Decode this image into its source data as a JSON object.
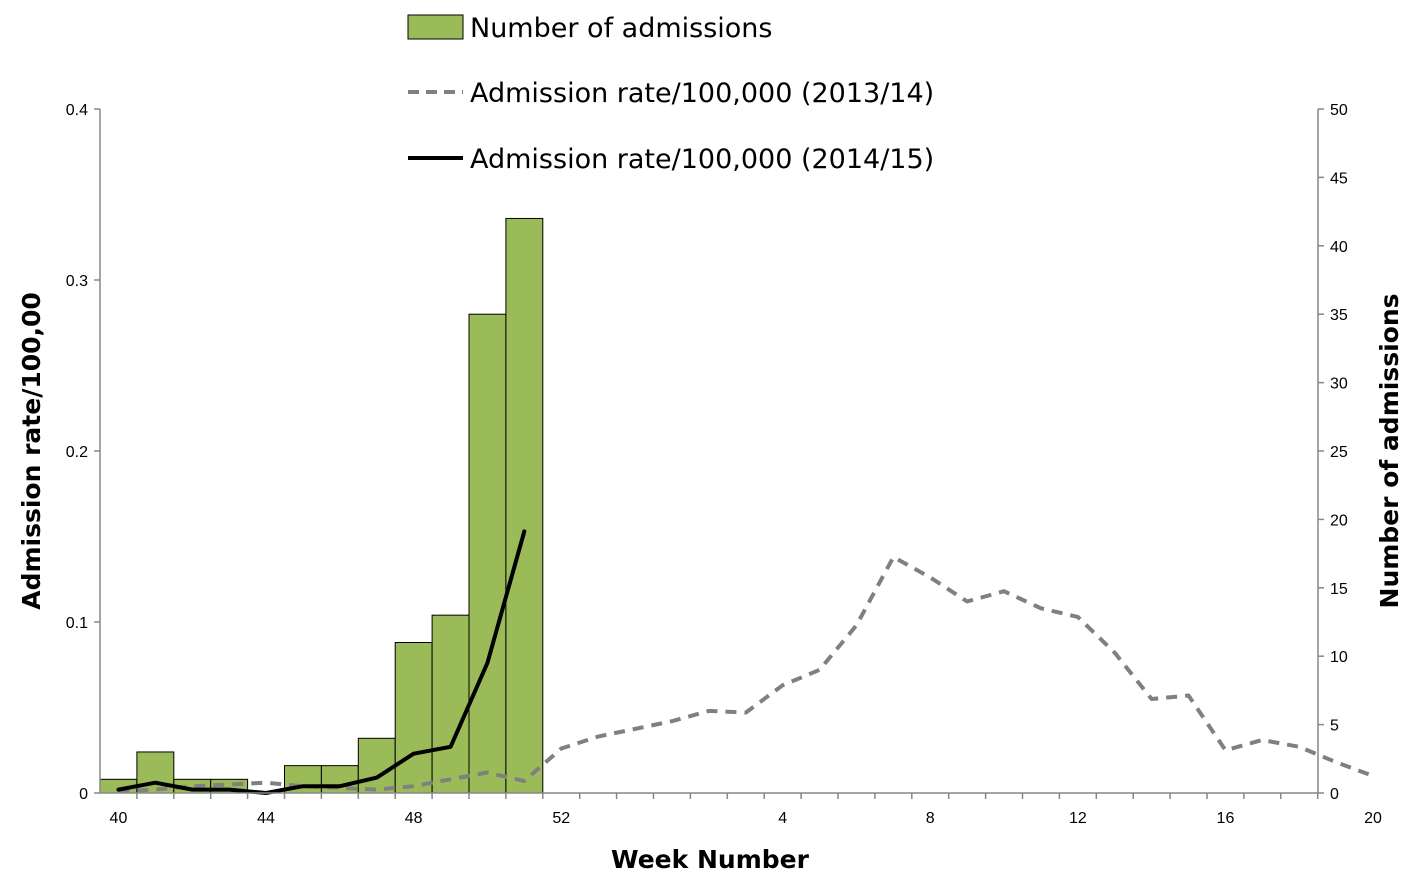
{
  "chart_data": {
    "type": "bar",
    "xlabel": "Week Number",
    "ylabel_left": "Admission rate/100,00",
    "ylabel_right": "Number of admissions",
    "ylim_left": [
      0,
      0.4
    ],
    "ylim_right": [
      0,
      50
    ],
    "yticks_left": [
      "0",
      "0.1",
      "0.2",
      "0.3",
      "0.4"
    ],
    "yticks_right": [
      "0",
      "5",
      "10",
      "15",
      "20",
      "25",
      "30",
      "35",
      "40",
      "45",
      "50"
    ],
    "x_tick_labels": [
      "40",
      "44",
      "48",
      "52",
      "4",
      "8",
      "12",
      "16",
      "20"
    ],
    "grid": false,
    "legend_position": "top-center",
    "bar_series": {
      "name": "Number of admissions",
      "axis": "right",
      "color": "#9BBB59",
      "weeks": [
        "40",
        "41",
        "42",
        "43",
        "44",
        "45",
        "46",
        "47",
        "48",
        "49",
        "50",
        "51"
      ],
      "values": [
        1,
        3,
        1,
        1,
        0,
        2,
        2,
        4,
        11,
        13,
        35,
        42
      ]
    },
    "line_series": [
      {
        "name": "Admission rate/100,000 (2013/14)",
        "axis": "left",
        "style": "dashed",
        "color": "#808080",
        "weeks": [
          "40",
          "41",
          "42",
          "43",
          "44",
          "45",
          "46",
          "47",
          "48",
          "49",
          "50",
          "51",
          "52",
          "53",
          "1",
          "2",
          "3",
          "4",
          "5",
          "6",
          "7",
          "8",
          "9",
          "10",
          "11",
          "12",
          "13",
          "14",
          "15",
          "16",
          "17",
          "18",
          "19",
          "20"
        ],
        "values": [
          0.001,
          0.002,
          0.004,
          0.005,
          0.006,
          0.004,
          0.003,
          0.002,
          0.004,
          0.008,
          0.012,
          0.007,
          0.026,
          0.033,
          0.042,
          0.048,
          0.047,
          0.063,
          0.072,
          0.098,
          0.138,
          0.126,
          0.112,
          0.118,
          0.108,
          0.103,
          0.082,
          0.055,
          0.057,
          0.025,
          0.031,
          0.027,
          0.018,
          0.01
        ]
      },
      {
        "name": "Admission rate/100,000 (2014/15)",
        "axis": "left",
        "style": "solid",
        "color": "#000000",
        "weeks": [
          "40",
          "41",
          "42",
          "43",
          "44",
          "45",
          "46",
          "47",
          "48",
          "49",
          "50",
          "51"
        ],
        "values": [
          0.002,
          0.006,
          0.002,
          0.002,
          0.0,
          0.004,
          0.004,
          0.009,
          0.023,
          0.027,
          0.076,
          0.153
        ]
      }
    ]
  }
}
